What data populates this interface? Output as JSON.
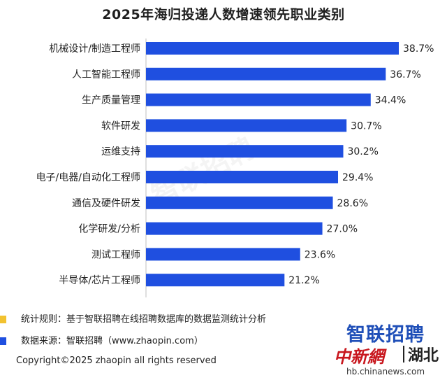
{
  "chart_data": {
    "type": "bar",
    "orientation": "horizontal",
    "title": "2025年海归投递人数增速领先职业类别",
    "categories": [
      "机械设计/制造工程师",
      "人工智能工程师",
      "生产质量管理",
      "软件研发",
      "运维支持",
      "电子/电器/自动化工程师",
      "通信及硬件研发",
      "化学研发/分析",
      "测试工程师",
      "半导体/芯片工程师"
    ],
    "values": [
      38.7,
      36.7,
      34.4,
      30.7,
      30.2,
      29.4,
      28.6,
      27.0,
      23.6,
      21.2
    ],
    "value_labels": [
      "38.7%",
      "36.7%",
      "34.4%",
      "30.7%",
      "30.2%",
      "29.4%",
      "28.6%",
      "27.0%",
      "23.6%",
      "21.2%"
    ],
    "xlim": [
      0,
      38.7
    ],
    "bar_color": "#1f4fe0",
    "grid": false,
    "legend": "none"
  },
  "notes": [
    {
      "marker_color": "#f2c230",
      "text": "统计规则：基于智联招聘在线招聘数据库的数据监测统计分析"
    },
    {
      "marker_color": "#1f4fe0",
      "text": "数据来源：智联招聘（www.zhaopin.com）"
    }
  ],
  "copyright": "Copyright©2025 zhaopin all rights reserved",
  "watermark": "智联招聘",
  "logos": {
    "zhaopin": "智联招聘",
    "chinanews": "中新網",
    "hubei": "湖北",
    "url": "hb.chinanews.com"
  }
}
